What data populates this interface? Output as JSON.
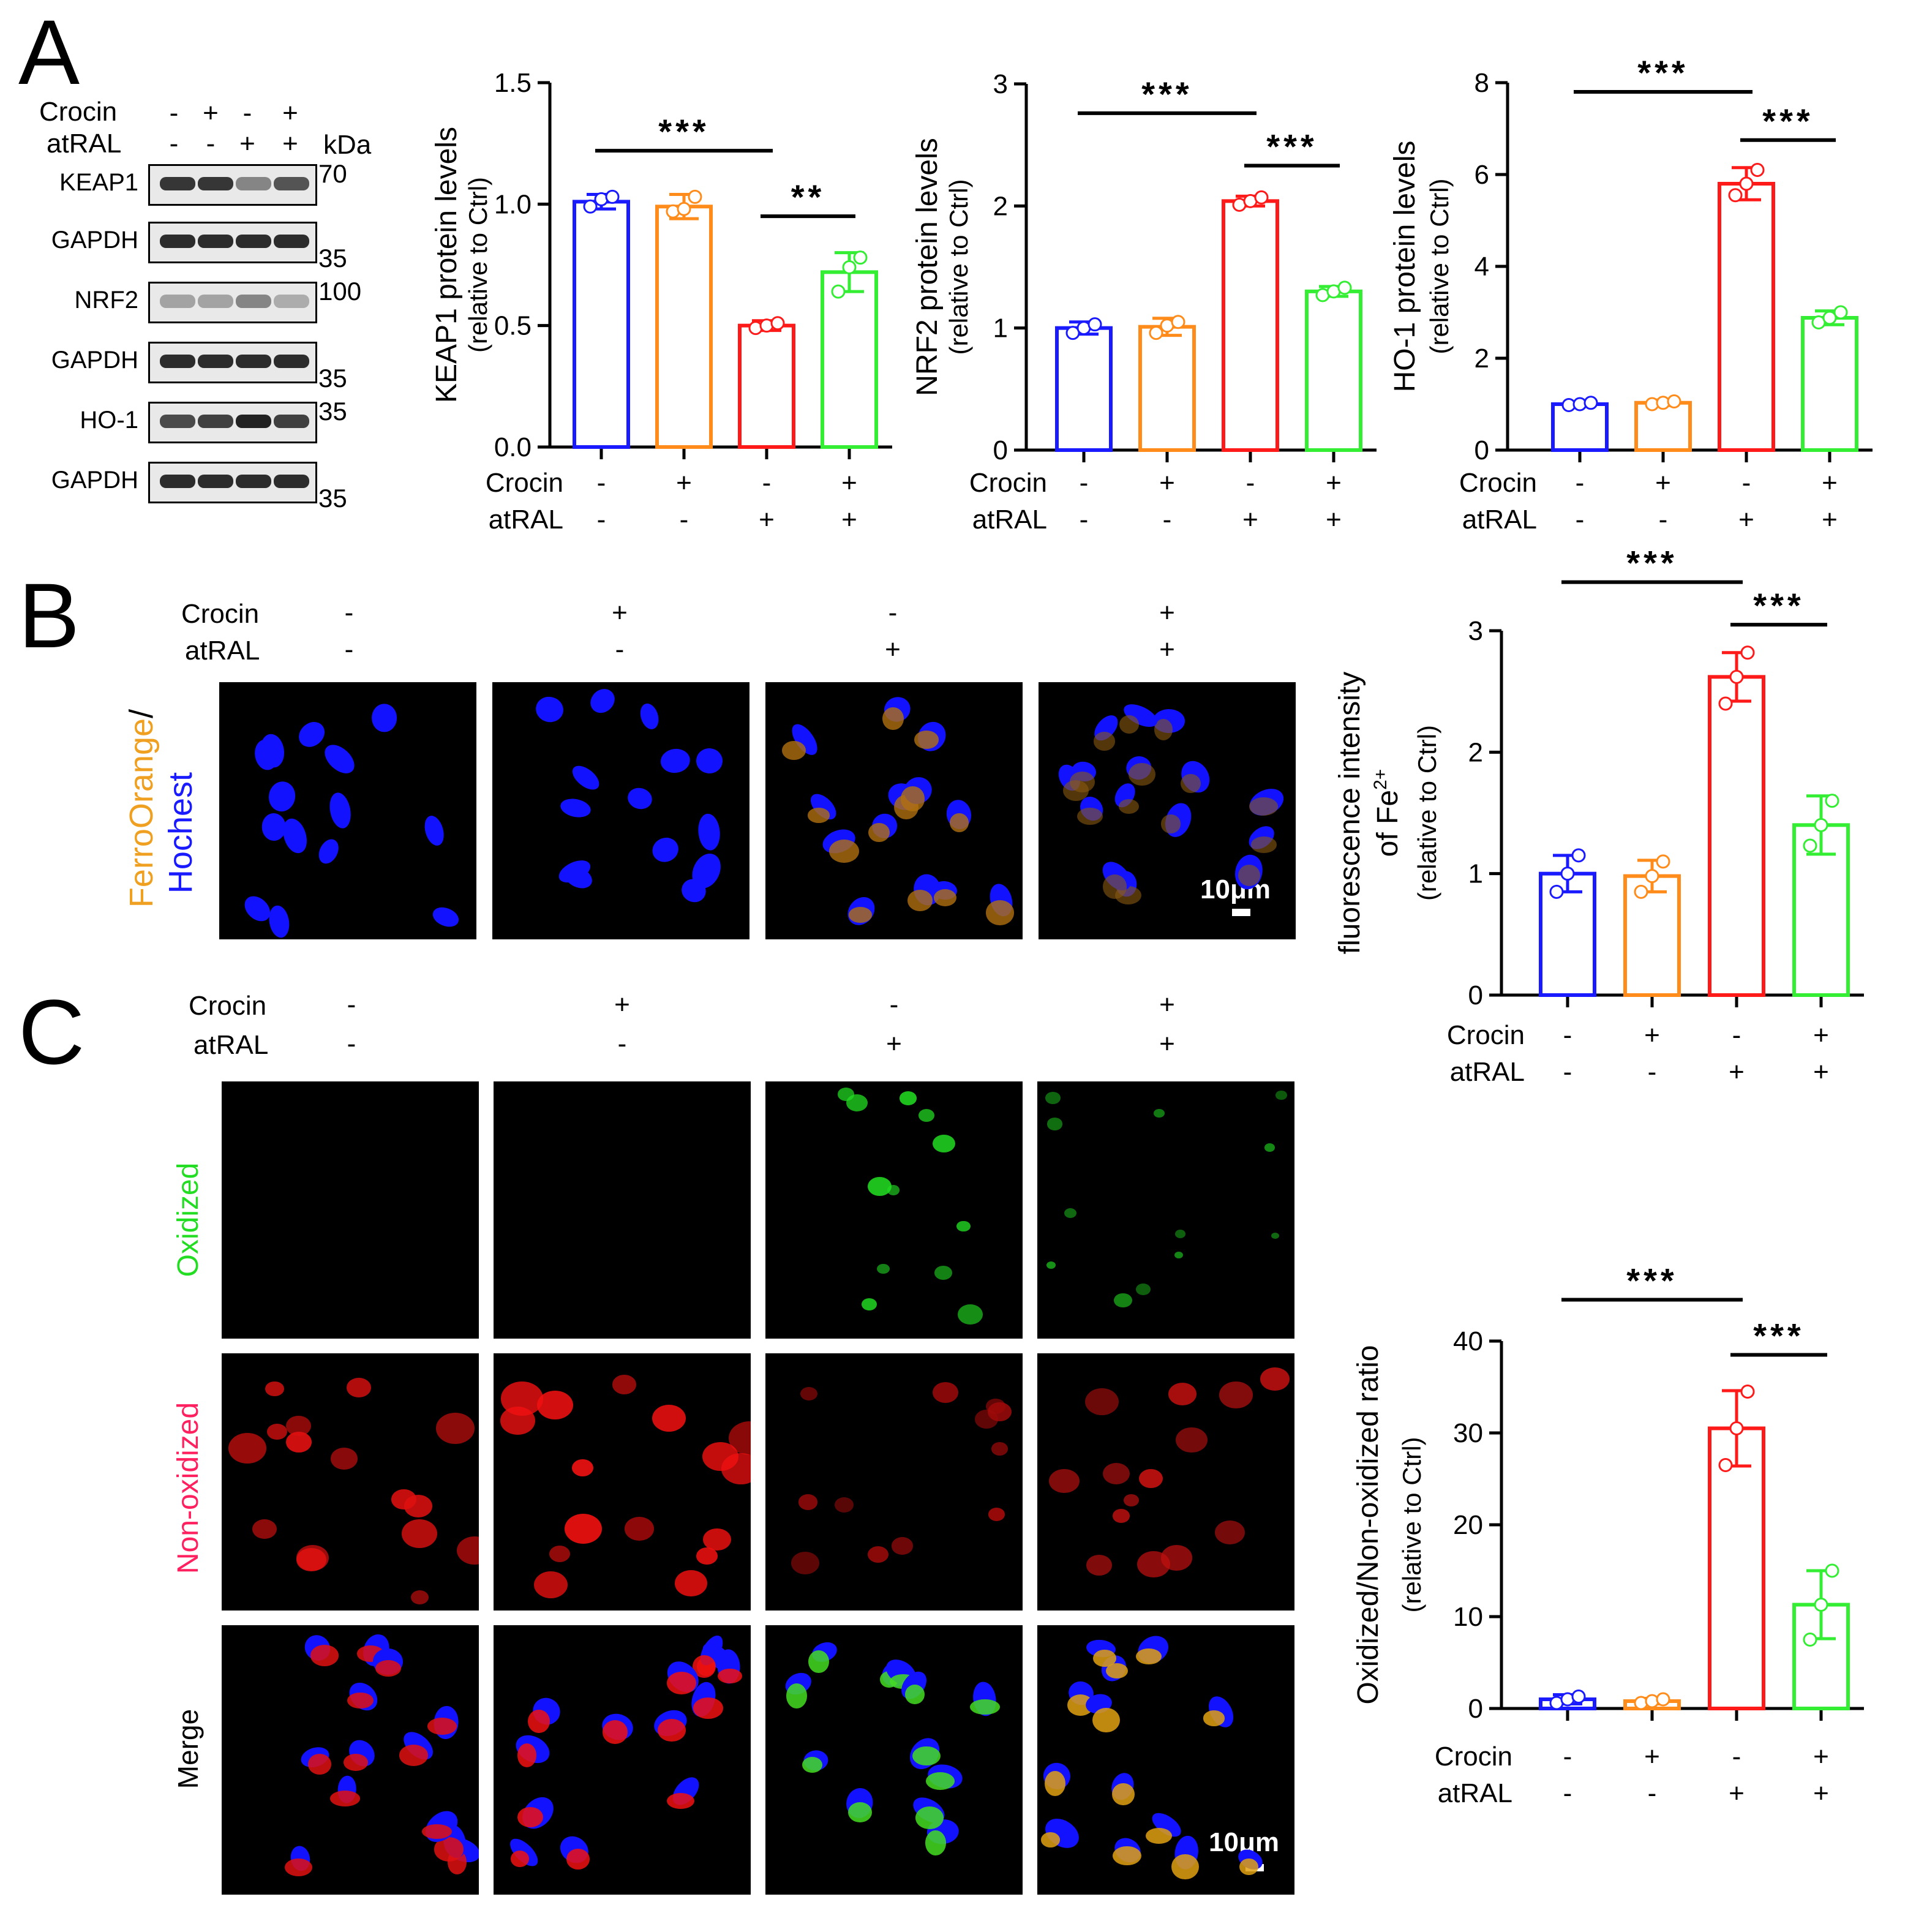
{
  "panels": {
    "A": "A",
    "B": "B",
    "C": "C"
  },
  "treatments": {
    "crocin": "Crocin",
    "atral": "atRAL"
  },
  "signs": {
    "crocin": [
      "-",
      "+",
      "-",
      "+"
    ],
    "atral": [
      "-",
      "-",
      "+",
      "+"
    ]
  },
  "western": {
    "kda_label": "kDa",
    "rows": [
      {
        "name": "KEAP1",
        "marker": "70",
        "marker_pos": "top",
        "intensity": [
          0.9,
          0.9,
          0.5,
          0.75
        ]
      },
      {
        "name": "GAPDH",
        "marker": "35",
        "marker_pos": "bottom",
        "intensity": [
          0.95,
          0.95,
          0.95,
          0.95
        ]
      },
      {
        "name": "NRF2",
        "marker": "100",
        "marker_pos": "top",
        "intensity": [
          0.35,
          0.35,
          0.5,
          0.3
        ]
      },
      {
        "name": "GAPDH",
        "marker": "35",
        "marker_pos": "bottom",
        "intensity": [
          0.95,
          0.95,
          0.95,
          0.95
        ]
      },
      {
        "name": "HO-1",
        "marker": "35",
        "marker_pos": "top",
        "intensity": [
          0.8,
          0.85,
          1.0,
          0.85
        ]
      },
      {
        "name": "GAPDH",
        "marker": "35",
        "marker_pos": "bottom",
        "intensity": [
          0.95,
          0.95,
          0.95,
          0.95
        ]
      }
    ]
  },
  "colors": {
    "ctrl": "#1a1aff",
    "crocin": "#ff8c1a",
    "atral": "#ff1a1a",
    "combo": "#33ee33"
  },
  "microscopy": {
    "ferro_label": "FerroOrange",
    "slash": "/",
    "hoechst_label": "Hochest",
    "oxidized_label": "Oxidized",
    "nonoxidized_label": "Non-oxidized",
    "merge_label": "Merge",
    "scale_bar": "10μm"
  },
  "chart_data": [
    {
      "type": "bar",
      "panel": "A",
      "categories": [
        "Ctrl",
        "Crocin",
        "atRAL",
        "Crocin+atRAL"
      ],
      "values": [
        1.01,
        0.99,
        0.5,
        0.72
      ],
      "errors": [
        0.03,
        0.05,
        0.02,
        0.08
      ],
      "points": [
        [
          0.99,
          1.02,
          1.03
        ],
        [
          0.97,
          0.98,
          1.03
        ],
        [
          0.49,
          0.5,
          0.51
        ],
        [
          0.64,
          0.74,
          0.78
        ]
      ],
      "ylabel": "KEAP1 protein levels",
      "ylabel2": "(relative to Ctrl)",
      "ylim": [
        0,
        1.5
      ],
      "yticks": [
        "0.0",
        "0.5",
        "1.0",
        "1.5"
      ],
      "sig": [
        {
          "from": 0,
          "to": 2,
          "label": "***",
          "y": 1.22
        },
        {
          "from": 2,
          "to": 3,
          "label": "**",
          "y": 0.95
        }
      ]
    },
    {
      "type": "bar",
      "panel": "A",
      "categories": [
        "Ctrl",
        "Crocin",
        "atRAL",
        "Crocin+atRAL"
      ],
      "values": [
        1.0,
        1.01,
        2.04,
        1.3
      ],
      "errors": [
        0.05,
        0.07,
        0.04,
        0.04
      ],
      "points": [
        [
          0.96,
          1.0,
          1.03
        ],
        [
          0.96,
          1.02,
          1.05
        ],
        [
          2.01,
          2.04,
          2.07
        ],
        [
          1.27,
          1.3,
          1.33
        ]
      ],
      "ylabel": "NRF2 protein levels",
      "ylabel2": "(relative to Ctrl)",
      "ylim": [
        0,
        3
      ],
      "yticks": [
        "0",
        "1",
        "2",
        "3"
      ],
      "sig": [
        {
          "from": 0,
          "to": 2,
          "label": "***",
          "y": 2.76
        },
        {
          "from": 2,
          "to": 3,
          "label": "***",
          "y": 2.33
        }
      ]
    },
    {
      "type": "bar",
      "panel": "A",
      "categories": [
        "Ctrl",
        "Crocin",
        "atRAL",
        "Crocin+atRAL"
      ],
      "values": [
        1.0,
        1.03,
        5.8,
        2.88
      ],
      "errors": [
        0.05,
        0.06,
        0.35,
        0.15
      ],
      "points": [
        [
          0.98,
          1.0,
          1.03
        ],
        [
          1.0,
          1.03,
          1.06
        ],
        [
          5.55,
          5.8,
          6.1
        ],
        [
          2.78,
          2.88,
          3.0
        ]
      ],
      "ylabel": "HO-1 protein levels",
      "ylabel2": "(relative to Ctrl)",
      "ylim": [
        0,
        8
      ],
      "yticks": [
        "0",
        "2",
        "4",
        "6",
        "8"
      ],
      "sig": [
        {
          "from": 0,
          "to": 2,
          "label": "***",
          "y": 7.8
        },
        {
          "from": 2,
          "to": 3,
          "label": "***",
          "y": 6.75
        }
      ]
    },
    {
      "type": "bar",
      "panel": "B",
      "categories": [
        "Ctrl",
        "Crocin",
        "atRAL",
        "Crocin+atRAL"
      ],
      "values": [
        1.0,
        0.98,
        2.62,
        1.4
      ],
      "errors": [
        0.15,
        0.13,
        0.2,
        0.24
      ],
      "points": [
        [
          0.85,
          1.0,
          1.15
        ],
        [
          0.85,
          0.98,
          1.1
        ],
        [
          2.4,
          2.62,
          2.82
        ],
        [
          1.23,
          1.4,
          1.6
        ]
      ],
      "ylabel": "fluorescence intensity",
      "ylabel_mid": "of Fe",
      "ylabel_sup": "2+",
      "ylabel2": "(relative to Ctrl)",
      "ylim": [
        0,
        3
      ],
      "yticks": [
        "0",
        "1",
        "2",
        "3"
      ],
      "sig": [
        {
          "from": 0,
          "to": 2,
          "label": "***",
          "y": 3.4
        },
        {
          "from": 2,
          "to": 3,
          "label": "***",
          "y": 3.05
        }
      ]
    },
    {
      "type": "bar",
      "panel": "C",
      "categories": [
        "Ctrl",
        "Crocin",
        "atRAL",
        "Crocin+atRAL"
      ],
      "values": [
        1.0,
        0.8,
        30.5,
        11.3
      ],
      "errors": [
        0.5,
        0.3,
        4.1,
        3.7
      ],
      "points": [
        [
          0.6,
          1.0,
          1.3
        ],
        [
          0.6,
          0.8,
          1.0
        ],
        [
          26.5,
          30.5,
          34.5
        ],
        [
          7.5,
          11.3,
          15.0
        ]
      ],
      "ylabel": "Oxidized/Non-oxidized ratio",
      "ylabel2": "(relative to Ctrl)",
      "ylim": [
        0,
        40
      ],
      "yticks": [
        "0",
        "10",
        "20",
        "30",
        "40"
      ],
      "sig": [
        {
          "from": 0,
          "to": 2,
          "label": "***",
          "y": 44.5
        },
        {
          "from": 2,
          "to": 3,
          "label": "***",
          "y": 38.5
        }
      ]
    }
  ]
}
